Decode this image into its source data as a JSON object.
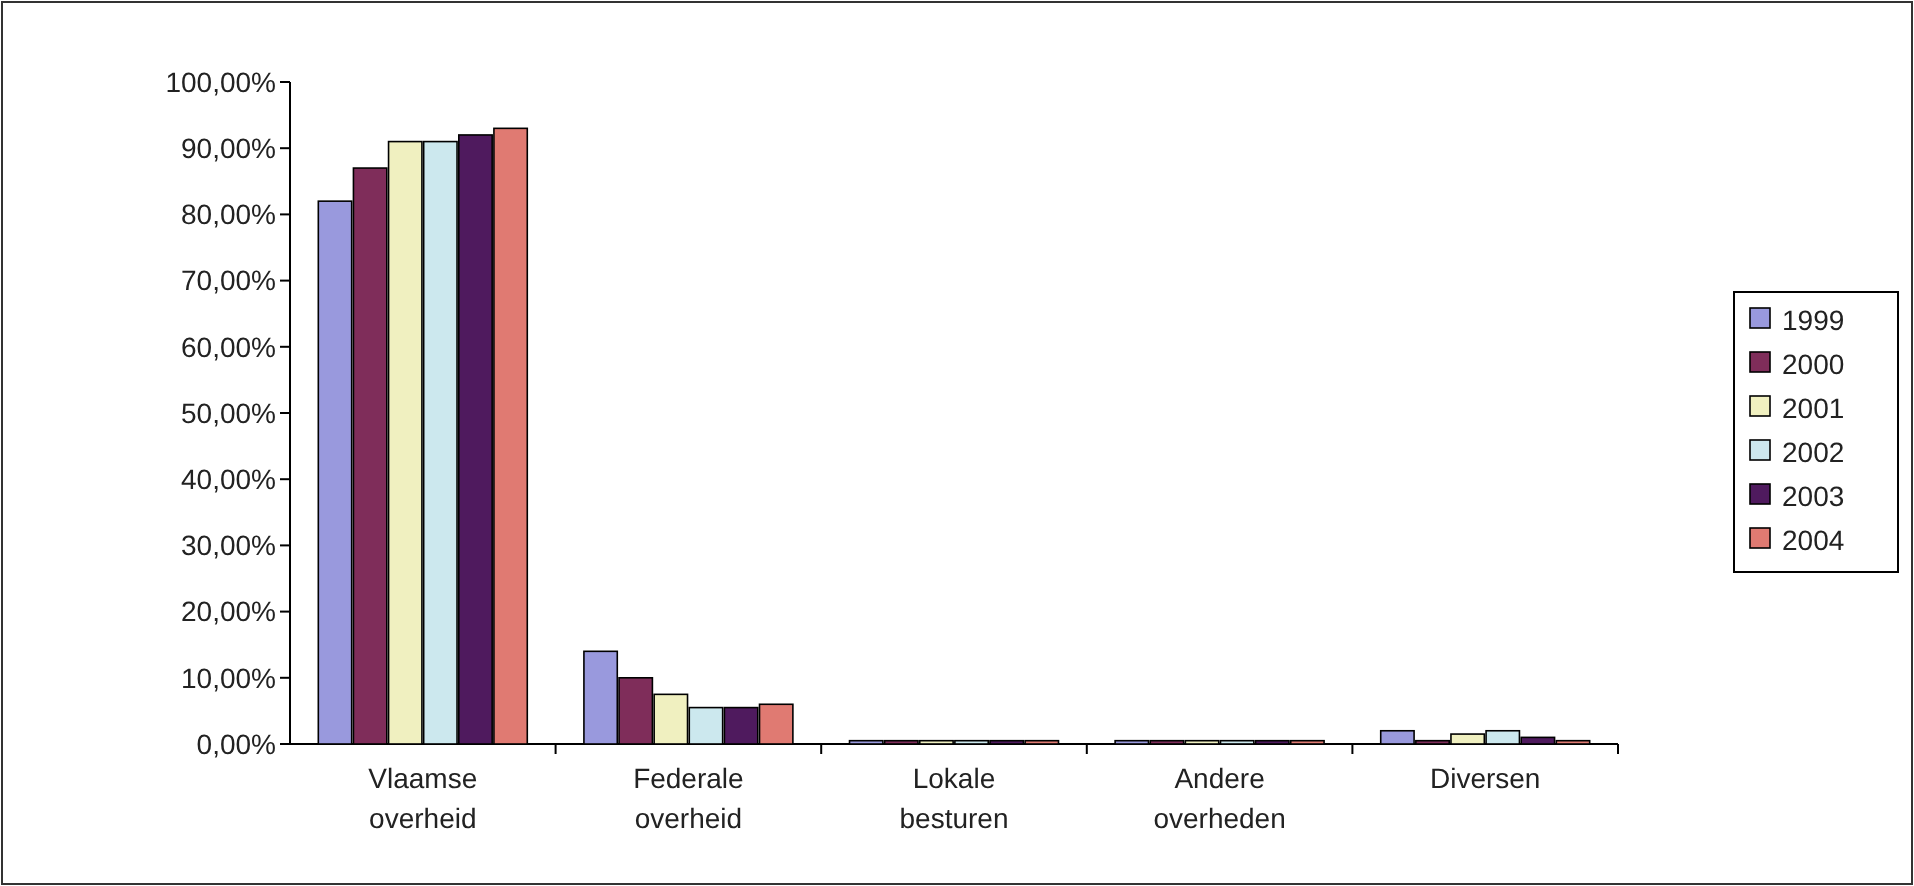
{
  "chart_data": {
    "type": "bar",
    "categories": [
      "Vlaamse overheid",
      "Federale overheid",
      "Lokale besturen",
      "Andere overheden",
      "Diversen"
    ],
    "series": [
      {
        "name": "1999",
        "color": "#9999dd",
        "values": [
          82,
          14,
          0.5,
          0.5,
          2
        ]
      },
      {
        "name": "2000",
        "color": "#7f2d5a",
        "values": [
          87,
          10,
          0.5,
          0.5,
          0.5
        ]
      },
      {
        "name": "2001",
        "color": "#f0f0c0",
        "values": [
          91,
          7.5,
          0.5,
          0.5,
          1.5
        ]
      },
      {
        "name": "2002",
        "color": "#cce8ee",
        "values": [
          91,
          5.5,
          0.5,
          0.5,
          2
        ]
      },
      {
        "name": "2003",
        "color": "#4f1a5e",
        "values": [
          92,
          5.5,
          0.5,
          0.5,
          1
        ]
      },
      {
        "name": "2004",
        "color": "#e07a72",
        "values": [
          93,
          6,
          0.5,
          0.5,
          0.5
        ]
      }
    ],
    "ylim": [
      0,
      100
    ],
    "yticks": [
      {
        "value": 0,
        "label": "0,00%"
      },
      {
        "value": 10,
        "label": "10,00%"
      },
      {
        "value": 20,
        "label": "20,00%"
      },
      {
        "value": 30,
        "label": "30,00%"
      },
      {
        "value": 40,
        "label": "40,00%"
      },
      {
        "value": 50,
        "label": "50,00%"
      },
      {
        "value": 60,
        "label": "60,00%"
      },
      {
        "value": 70,
        "label": "70,00%"
      },
      {
        "value": 80,
        "label": "80,00%"
      },
      {
        "value": 90,
        "label": "90,00%"
      },
      {
        "value": 100,
        "label": "100,00%"
      }
    ],
    "grid": false,
    "legend": "right"
  }
}
